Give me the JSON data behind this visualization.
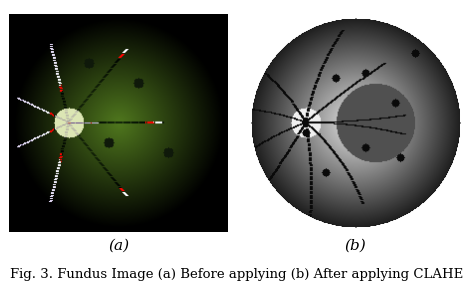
{
  "label_a": "(a)",
  "label_b": "(b)",
  "caption": "Fig. 3. Fundus Image (a) Before applying (b) After applying CLAHE",
  "bg_color": "#ffffff",
  "label_fontsize": 11,
  "caption_fontsize": 9.5,
  "fig_width": 4.74,
  "fig_height": 2.86
}
